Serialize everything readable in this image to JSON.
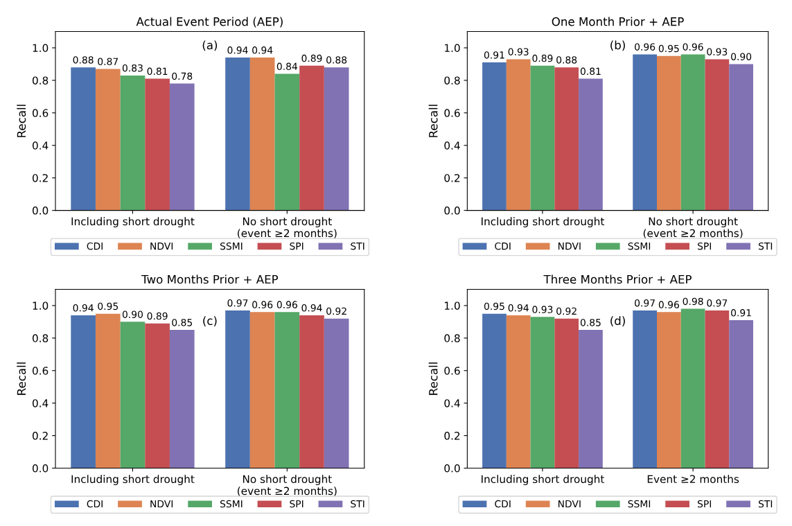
{
  "chart_data": [
    {
      "type": "bar",
      "title": "Actual Event Period (AEP)",
      "ylabel": "Recall",
      "categories": [
        "Including short drought",
        "No short drought\n(event ≥2 months)"
      ],
      "ylim": [
        0,
        1.1
      ],
      "yticks": [
        {
          "value": 0,
          "label": "0.0"
        },
        {
          "value": 0.2,
          "label": "0.2"
        },
        {
          "value": 0.4,
          "label": "0.4"
        },
        {
          "value": 0.6,
          "label": "0.6"
        },
        {
          "value": 0.8,
          "label": "0.8"
        },
        {
          "value": 1.0,
          "label": "1.0"
        }
      ],
      "legend": "bottom",
      "annotations": [
        "(a)"
      ],
      "series": [
        {
          "name": "CDI",
          "color": "#4c72b0",
          "values": [
            0.88,
            0.94
          ],
          "value_labels": [
            "0.88",
            "0.94"
          ]
        },
        {
          "name": "NDVI",
          "color": "#dd8452",
          "values": [
            0.87,
            0.94
          ],
          "value_labels": [
            "0.87",
            "0.94"
          ]
        },
        {
          "name": "SSMI",
          "color": "#55a868",
          "values": [
            0.83,
            0.84
          ],
          "value_labels": [
            "0.83",
            "0.84"
          ]
        },
        {
          "name": "SPI",
          "color": "#c44e52",
          "values": [
            0.81,
            0.89
          ],
          "value_labels": [
            "0.81",
            "0.89"
          ]
        },
        {
          "name": "STI",
          "color": "#8172b3",
          "values": [
            0.78,
            0.88
          ],
          "value_labels": [
            "0.78",
            "0.88"
          ]
        }
      ]
    },
    {
      "type": "bar",
      "title": "One Month Prior + AEP",
      "ylabel": "Recall",
      "categories": [
        "Including short drought",
        "No short drought\n(event ≥2 months)"
      ],
      "ylim": [
        0,
        1.1
      ],
      "yticks": [
        {
          "value": 0,
          "label": "0.0"
        },
        {
          "value": 0.2,
          "label": "0.2"
        },
        {
          "value": 0.4,
          "label": "0.4"
        },
        {
          "value": 0.6,
          "label": "0.6"
        },
        {
          "value": 0.8,
          "label": "0.8"
        },
        {
          "value": 1.0,
          "label": "1.0"
        }
      ],
      "legend": "bottom",
      "annotations": [
        "(b)"
      ],
      "series": [
        {
          "name": "CDI",
          "color": "#4c72b0",
          "values": [
            0.91,
            0.96
          ],
          "value_labels": [
            "0.91",
            "0.96"
          ]
        },
        {
          "name": "NDVI",
          "color": "#dd8452",
          "values": [
            0.93,
            0.95
          ],
          "value_labels": [
            "0.93",
            "0.95"
          ]
        },
        {
          "name": "SSMI",
          "color": "#55a868",
          "values": [
            0.89,
            0.96
          ],
          "value_labels": [
            "0.89",
            "0.96"
          ]
        },
        {
          "name": "SPI",
          "color": "#c44e52",
          "values": [
            0.88,
            0.93
          ],
          "value_labels": [
            "0.88",
            "0.93"
          ]
        },
        {
          "name": "STI",
          "color": "#8172b3",
          "values": [
            0.81,
            0.9
          ],
          "value_labels": [
            "0.81",
            "0.90"
          ]
        }
      ]
    },
    {
      "type": "bar",
      "title": "Two Months Prior + AEP",
      "ylabel": "Recall",
      "categories": [
        "Including short drought",
        "No short drought\n(event ≥2 months)"
      ],
      "ylim": [
        0,
        1.1
      ],
      "yticks": [
        {
          "value": 0,
          "label": "0.0"
        },
        {
          "value": 0.2,
          "label": "0.2"
        },
        {
          "value": 0.4,
          "label": "0.4"
        },
        {
          "value": 0.6,
          "label": "0.6"
        },
        {
          "value": 0.8,
          "label": "0.8"
        },
        {
          "value": 1.0,
          "label": "1.0"
        }
      ],
      "legend": "bottom",
      "annotations": [
        "(c)"
      ],
      "series": [
        {
          "name": "CDI",
          "color": "#4c72b0",
          "values": [
            0.94,
            0.97
          ],
          "value_labels": [
            "0.94",
            "0.97"
          ]
        },
        {
          "name": "NDVI",
          "color": "#dd8452",
          "values": [
            0.95,
            0.96
          ],
          "value_labels": [
            "0.95",
            "0.96"
          ]
        },
        {
          "name": "SSMI",
          "color": "#55a868",
          "values": [
            0.9,
            0.96
          ],
          "value_labels": [
            "0.90",
            "0.96"
          ]
        },
        {
          "name": "SPI",
          "color": "#c44e52",
          "values": [
            0.89,
            0.94
          ],
          "value_labels": [
            "0.89",
            "0.94"
          ]
        },
        {
          "name": "STI",
          "color": "#8172b3",
          "values": [
            0.85,
            0.92
          ],
          "value_labels": [
            "0.85",
            "0.92"
          ]
        }
      ]
    },
    {
      "type": "bar",
      "title": "Three Months Prior + AEP",
      "ylabel": "Recall",
      "categories": [
        "Including short drought",
        "Event ≥2 months"
      ],
      "ylim": [
        0,
        1.1
      ],
      "yticks": [
        {
          "value": 0,
          "label": "0.0"
        },
        {
          "value": 0.2,
          "label": "0.2"
        },
        {
          "value": 0.4,
          "label": "0.4"
        },
        {
          "value": 0.6,
          "label": "0.6"
        },
        {
          "value": 0.8,
          "label": "0.8"
        },
        {
          "value": 1.0,
          "label": "1.0"
        }
      ],
      "legend": "bottom",
      "annotations": [
        "(d)"
      ],
      "series": [
        {
          "name": "CDI",
          "color": "#4c72b0",
          "values": [
            0.95,
            0.97
          ],
          "value_labels": [
            "0.95",
            "0.97"
          ]
        },
        {
          "name": "NDVI",
          "color": "#dd8452",
          "values": [
            0.94,
            0.96
          ],
          "value_labels": [
            "0.94",
            "0.96"
          ]
        },
        {
          "name": "SSMI",
          "color": "#55a868",
          "values": [
            0.93,
            0.98
          ],
          "value_labels": [
            "0.93",
            "0.98"
          ]
        },
        {
          "name": "SPI",
          "color": "#c44e52",
          "values": [
            0.92,
            0.97
          ],
          "value_labels": [
            "0.92",
            "0.97"
          ]
        },
        {
          "name": "STI",
          "color": "#8172b3",
          "values": [
            0.85,
            0.91
          ],
          "value_labels": [
            "0.85",
            "0.91"
          ]
        }
      ]
    }
  ]
}
